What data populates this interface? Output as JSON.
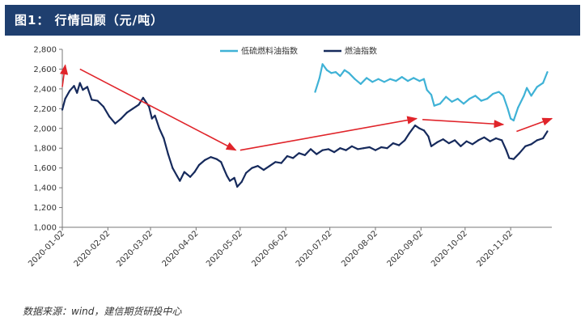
{
  "header": {
    "title": "图1：  行情回顾（元/吨）"
  },
  "source_note": "数据来源：wind，建信期货研投中心",
  "colors": {
    "header_bg": "#1f3f6f",
    "fuel_index": "#162a5c",
    "low_sulfur_index": "#3fb2d6",
    "arrow": "#e0242a"
  },
  "chart_data": {
    "type": "line",
    "title": "",
    "xlabel": "",
    "ylabel": "",
    "ylim": [
      1000,
      2800
    ],
    "yticks": [
      1000,
      1200,
      1400,
      1600,
      1800,
      2000,
      2200,
      2400,
      2600,
      2800
    ],
    "ytick_labels": [
      "1,000",
      "1,200",
      "1,400",
      "1,600",
      "1,800",
      "2,000",
      "2,200",
      "2,400",
      "2,600",
      "2,800"
    ],
    "xlim": [
      "2020-01-02",
      "2020-11-30"
    ],
    "xtick_labels": [
      "2020-01-02",
      "2020-02-02",
      "2020-03-02",
      "2020-04-02",
      "2020-05-02",
      "2020-06-02",
      "2020-07-02",
      "2020-08-02",
      "2020-09-02",
      "2020-10-02",
      "2020-11-02"
    ],
    "grid": false,
    "legend_position": "top",
    "series": [
      {
        "name": "低硫燃料油指数",
        "color": "#3fb2d6",
        "points": [
          [
            "2020-06-22",
            2370
          ],
          [
            "2020-06-25",
            2510
          ],
          [
            "2020-06-27",
            2650
          ],
          [
            "2020-06-30",
            2590
          ],
          [
            "2020-07-03",
            2560
          ],
          [
            "2020-07-06",
            2570
          ],
          [
            "2020-07-09",
            2530
          ],
          [
            "2020-07-12",
            2590
          ],
          [
            "2020-07-15",
            2560
          ],
          [
            "2020-07-19",
            2500
          ],
          [
            "2020-07-23",
            2450
          ],
          [
            "2020-07-27",
            2510
          ],
          [
            "2020-07-31",
            2470
          ],
          [
            "2020-08-04",
            2500
          ],
          [
            "2020-08-08",
            2470
          ],
          [
            "2020-08-12",
            2500
          ],
          [
            "2020-08-16",
            2480
          ],
          [
            "2020-08-20",
            2520
          ],
          [
            "2020-08-24",
            2480
          ],
          [
            "2020-08-28",
            2510
          ],
          [
            "2020-09-01",
            2480
          ],
          [
            "2020-09-04",
            2500
          ],
          [
            "2020-09-06",
            2390
          ],
          [
            "2020-09-09",
            2340
          ],
          [
            "2020-09-11",
            2230
          ],
          [
            "2020-09-15",
            2250
          ],
          [
            "2020-09-19",
            2320
          ],
          [
            "2020-09-23",
            2270
          ],
          [
            "2020-09-27",
            2300
          ],
          [
            "2020-10-01",
            2250
          ],
          [
            "2020-10-05",
            2300
          ],
          [
            "2020-10-09",
            2330
          ],
          [
            "2020-10-13",
            2280
          ],
          [
            "2020-10-17",
            2300
          ],
          [
            "2020-10-21",
            2350
          ],
          [
            "2020-10-25",
            2370
          ],
          [
            "2020-10-28",
            2330
          ],
          [
            "2020-10-31",
            2200
          ],
          [
            "2020-11-02",
            2100
          ],
          [
            "2020-11-04",
            2080
          ],
          [
            "2020-11-07",
            2210
          ],
          [
            "2020-11-11",
            2330
          ],
          [
            "2020-11-13",
            2410
          ],
          [
            "2020-11-16",
            2330
          ],
          [
            "2020-11-20",
            2420
          ],
          [
            "2020-11-24",
            2460
          ],
          [
            "2020-11-27",
            2570
          ]
        ]
      },
      {
        "name": "燃油指数",
        "color": "#162a5c",
        "points": [
          [
            "2020-01-02",
            2190
          ],
          [
            "2020-01-04",
            2300
          ],
          [
            "2020-01-07",
            2380
          ],
          [
            "2020-01-10",
            2430
          ],
          [
            "2020-01-12",
            2360
          ],
          [
            "2020-01-14",
            2460
          ],
          [
            "2020-01-16",
            2390
          ],
          [
            "2020-01-19",
            2420
          ],
          [
            "2020-01-22",
            2290
          ],
          [
            "2020-01-26",
            2280
          ],
          [
            "2020-01-30",
            2220
          ],
          [
            "2020-02-03",
            2120
          ],
          [
            "2020-02-07",
            2050
          ],
          [
            "2020-02-11",
            2100
          ],
          [
            "2020-02-15",
            2160
          ],
          [
            "2020-02-19",
            2200
          ],
          [
            "2020-02-23",
            2240
          ],
          [
            "2020-02-26",
            2310
          ],
          [
            "2020-03-01",
            2220
          ],
          [
            "2020-03-03",
            2100
          ],
          [
            "2020-03-05",
            2130
          ],
          [
            "2020-03-08",
            2000
          ],
          [
            "2020-03-11",
            1900
          ],
          [
            "2020-03-14",
            1740
          ],
          [
            "2020-03-17",
            1600
          ],
          [
            "2020-03-20",
            1520
          ],
          [
            "2020-03-22",
            1470
          ],
          [
            "2020-03-25",
            1560
          ],
          [
            "2020-03-29",
            1510
          ],
          [
            "2020-04-01",
            1560
          ],
          [
            "2020-04-04",
            1630
          ],
          [
            "2020-04-08",
            1680
          ],
          [
            "2020-04-12",
            1710
          ],
          [
            "2020-04-16",
            1690
          ],
          [
            "2020-04-19",
            1660
          ],
          [
            "2020-04-21",
            1590
          ],
          [
            "2020-04-23",
            1520
          ],
          [
            "2020-04-25",
            1470
          ],
          [
            "2020-04-28",
            1500
          ],
          [
            "2020-04-30",
            1410
          ],
          [
            "2020-05-03",
            1460
          ],
          [
            "2020-05-06",
            1550
          ],
          [
            "2020-05-10",
            1600
          ],
          [
            "2020-05-14",
            1620
          ],
          [
            "2020-05-18",
            1580
          ],
          [
            "2020-05-22",
            1620
          ],
          [
            "2020-05-26",
            1660
          ],
          [
            "2020-05-30",
            1650
          ],
          [
            "2020-06-03",
            1720
          ],
          [
            "2020-06-07",
            1700
          ],
          [
            "2020-06-11",
            1750
          ],
          [
            "2020-06-15",
            1730
          ],
          [
            "2020-06-19",
            1790
          ],
          [
            "2020-06-23",
            1740
          ],
          [
            "2020-06-27",
            1780
          ],
          [
            "2020-07-01",
            1790
          ],
          [
            "2020-07-05",
            1760
          ],
          [
            "2020-07-09",
            1800
          ],
          [
            "2020-07-13",
            1780
          ],
          [
            "2020-07-17",
            1820
          ],
          [
            "2020-07-21",
            1790
          ],
          [
            "2020-07-25",
            1800
          ],
          [
            "2020-07-29",
            1810
          ],
          [
            "2020-08-02",
            1780
          ],
          [
            "2020-08-06",
            1810
          ],
          [
            "2020-08-10",
            1800
          ],
          [
            "2020-08-14",
            1850
          ],
          [
            "2020-08-18",
            1830
          ],
          [
            "2020-08-22",
            1880
          ],
          [
            "2020-08-25",
            1950
          ],
          [
            "2020-08-29",
            2030
          ],
          [
            "2020-09-01",
            2000
          ],
          [
            "2020-09-04",
            1980
          ],
          [
            "2020-09-07",
            1920
          ],
          [
            "2020-09-09",
            1820
          ],
          [
            "2020-09-13",
            1860
          ],
          [
            "2020-09-17",
            1890
          ],
          [
            "2020-09-21",
            1850
          ],
          [
            "2020-09-25",
            1880
          ],
          [
            "2020-09-29",
            1820
          ],
          [
            "2020-10-03",
            1870
          ],
          [
            "2020-10-07",
            1840
          ],
          [
            "2020-10-11",
            1880
          ],
          [
            "2020-10-15",
            1910
          ],
          [
            "2020-10-19",
            1870
          ],
          [
            "2020-10-23",
            1900
          ],
          [
            "2020-10-27",
            1880
          ],
          [
            "2020-10-30",
            1780
          ],
          [
            "2020-11-01",
            1700
          ],
          [
            "2020-11-04",
            1690
          ],
          [
            "2020-11-08",
            1750
          ],
          [
            "2020-11-12",
            1820
          ],
          [
            "2020-11-16",
            1840
          ],
          [
            "2020-11-20",
            1880
          ],
          [
            "2020-11-24",
            1900
          ],
          [
            "2020-11-27",
            1970
          ]
        ]
      }
    ],
    "annotations": [
      {
        "type": "arrow",
        "from": [
          "2020-01-02",
          2420
        ],
        "to": [
          "2020-01-04",
          2640
        ]
      },
      {
        "type": "arrow",
        "from": [
          "2020-01-14",
          2600
        ],
        "to": [
          "2020-04-29",
          1780
        ]
      },
      {
        "type": "arrow",
        "from": [
          "2020-05-02",
          1780
        ],
        "to": [
          "2020-08-30",
          2100
        ]
      },
      {
        "type": "arrow",
        "from": [
          "2020-09-03",
          2090
        ],
        "to": [
          "2020-10-28",
          2040
        ]
      },
      {
        "type": "arrow",
        "from": [
          "2020-11-06",
          1970
        ],
        "to": [
          "2020-11-30",
          2100
        ]
      }
    ]
  }
}
